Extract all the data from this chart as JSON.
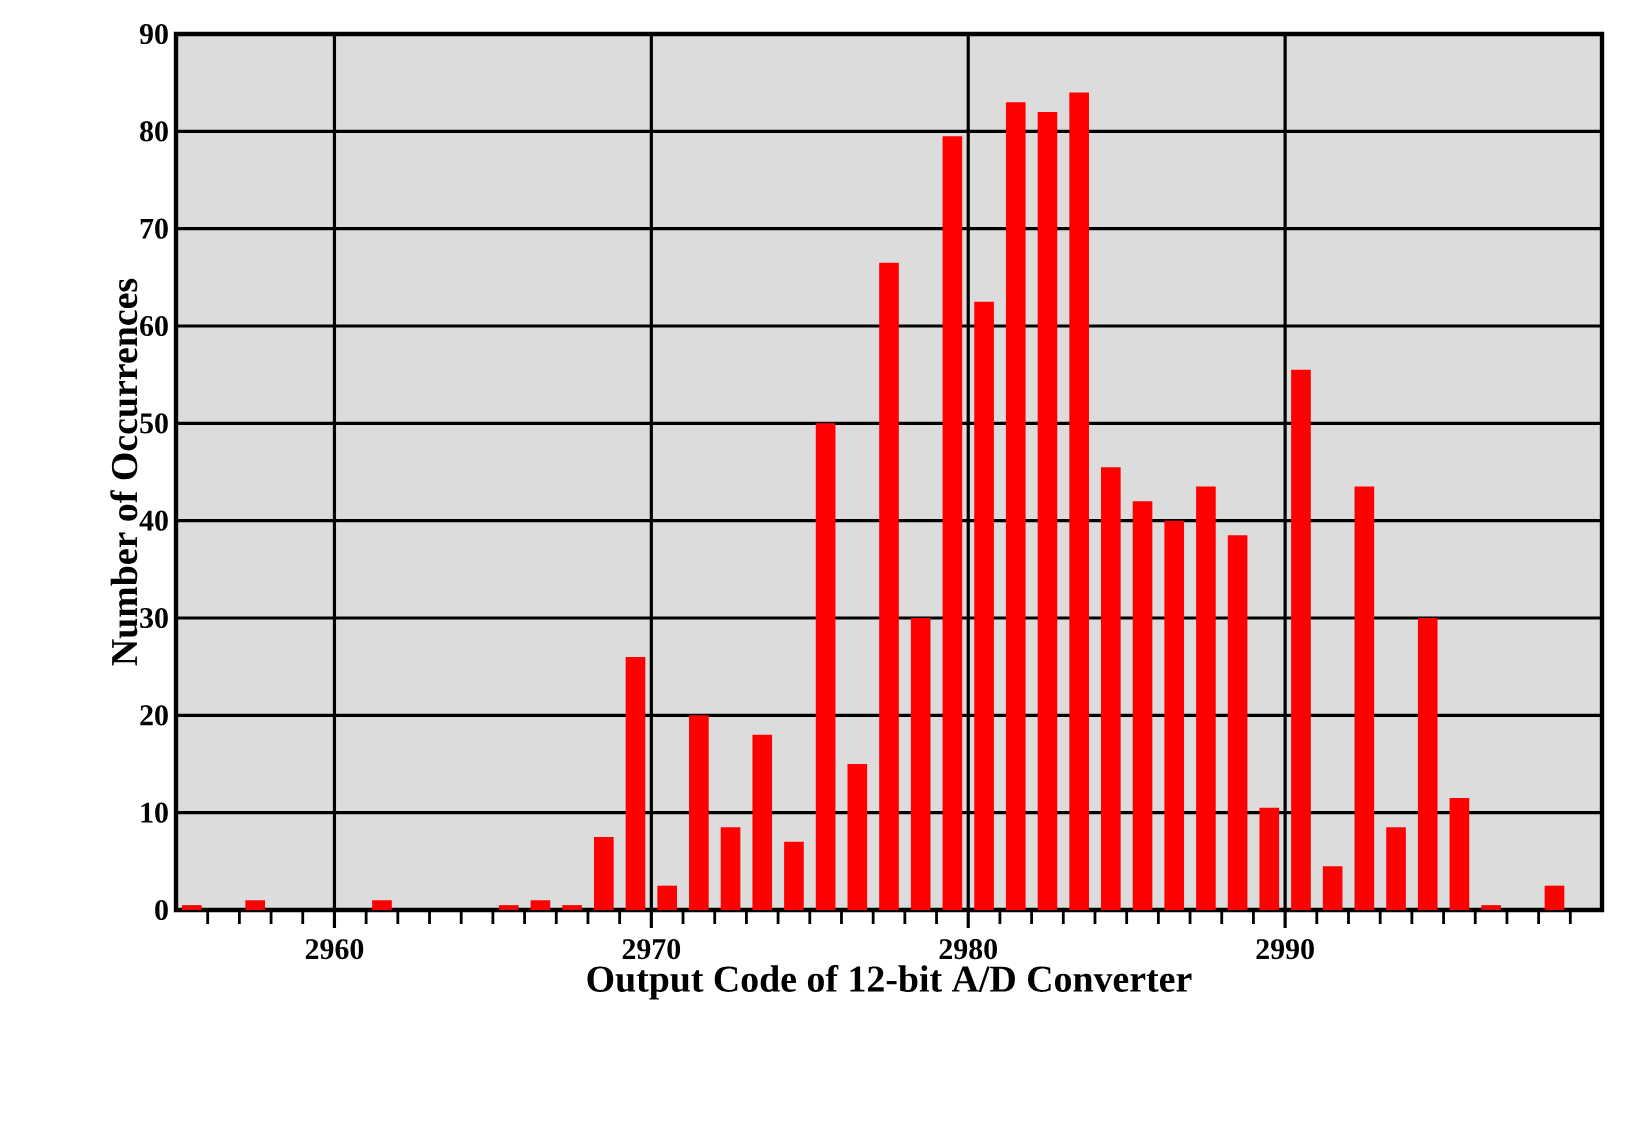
{
  "chart_data": {
    "type": "histogram",
    "xlabel": "Output Code of 12-bit A/D Converter",
    "ylabel": "Number of Occurrences",
    "bins": [
      2955,
      2956,
      2957,
      2958,
      2959,
      2960,
      2961,
      2962,
      2963,
      2964,
      2965,
      2966,
      2967,
      2968,
      2969,
      2970,
      2971,
      2972,
      2973,
      2974,
      2975,
      2976,
      2977,
      2978,
      2979,
      2980,
      2981,
      2982,
      2983,
      2984,
      2985,
      2986,
      2987,
      2988,
      2989,
      2990,
      2991,
      2992,
      2993,
      2994,
      2995,
      2996,
      2997,
      2998,
      2999,
      3000
    ],
    "values": [
      0.5,
      0,
      1,
      0,
      0,
      0,
      1,
      0,
      0,
      0,
      0.5,
      1,
      0.5,
      7.5,
      26,
      2.5,
      20,
      8.5,
      18,
      7,
      50,
      15,
      66.5,
      30,
      79.5,
      62.5,
      83,
      82,
      84,
      45.5,
      42,
      40,
      43.5,
      38.5,
      10.5,
      55.5,
      4.5,
      43.5,
      8.5,
      30,
      11.5,
      0.5,
      0,
      2.5,
      0
    ],
    "color": "#ff0000",
    "xlim": [
      2955,
      3000
    ],
    "ylim": [
      0,
      90
    ],
    "xticks": [
      {
        "value": 2956,
        "label": null
      },
      {
        "value": 2957,
        "label": null
      },
      {
        "value": 2958,
        "label": null
      },
      {
        "value": 2959,
        "label": null
      },
      2960,
      {
        "value": 2961,
        "label": null
      },
      {
        "value": 2962,
        "label": null
      },
      {
        "value": 2963,
        "label": null
      },
      {
        "value": 2964,
        "label": null
      },
      {
        "value": 2965,
        "label": null
      },
      {
        "value": 2966,
        "label": null
      },
      {
        "value": 2967,
        "label": null
      },
      {
        "value": 2968,
        "label": null
      },
      {
        "value": 2969,
        "label": null
      },
      2970,
      {
        "value": 2971,
        "label": null
      },
      {
        "value": 2972,
        "label": null
      },
      {
        "value": 2973,
        "label": null
      },
      {
        "value": 2974,
        "label": null
      },
      {
        "value": 2975,
        "label": null
      },
      {
        "value": 2976,
        "label": null
      },
      {
        "value": 2977,
        "label": null
      },
      {
        "value": 2978,
        "label": null
      },
      {
        "value": 2979,
        "label": null
      },
      2980,
      {
        "value": 2981,
        "label": null
      },
      {
        "value": 2982,
        "label": null
      },
      {
        "value": 2983,
        "label": null
      },
      {
        "value": 2984,
        "label": null
      },
      {
        "value": 2985,
        "label": null
      },
      {
        "value": 2986,
        "label": null
      },
      {
        "value": 2987,
        "label": null
      },
      {
        "value": 2988,
        "label": null
      },
      {
        "value": 2989,
        "label": null
      },
      2990,
      {
        "value": 2991,
        "label": null
      },
      {
        "value": 2992,
        "label": null
      },
      {
        "value": 2993,
        "label": null
      },
      {
        "value": 2994,
        "label": null
      },
      {
        "value": 2995,
        "label": null
      },
      {
        "value": 2996,
        "label": null
      },
      {
        "value": 2997,
        "label": null
      },
      {
        "value": 2998,
        "label": null
      },
      {
        "value": 2999,
        "label": null
      }
    ],
    "yticks": [
      0,
      10,
      20,
      30,
      40,
      50,
      60,
      70,
      80,
      90
    ],
    "grid": true
  }
}
